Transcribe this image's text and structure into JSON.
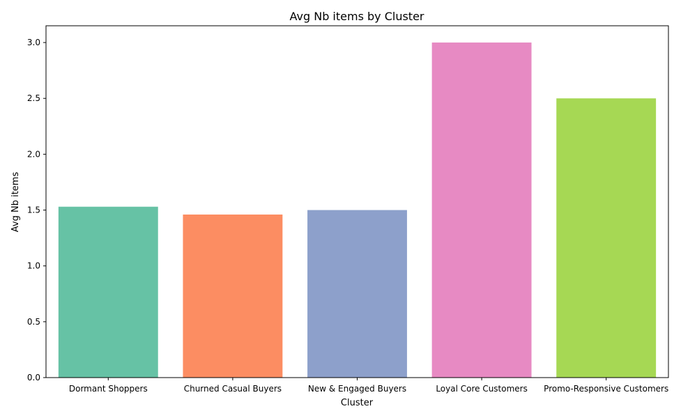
{
  "chart_data": {
    "type": "bar",
    "title": "Avg Nb items by Cluster",
    "xlabel": "Cluster",
    "ylabel": "Avg Nb items",
    "categories": [
      "Dormant Shoppers",
      "Churned Casual Buyers",
      "New & Engaged Buyers",
      "Loyal Core Customers",
      "Promo-Responsive Customers"
    ],
    "values": [
      1.53,
      1.46,
      1.5,
      3.0,
      2.5
    ],
    "colors": [
      "#66c2a5",
      "#fc8d62",
      "#8da0cb",
      "#e78ac3",
      "#a6d854"
    ],
    "ylim": [
      0,
      3.15
    ],
    "yticks": [
      "0.0",
      "0.5",
      "1.0",
      "1.5",
      "2.0",
      "2.5",
      "3.0"
    ],
    "grid": false,
    "legend": "none"
  }
}
